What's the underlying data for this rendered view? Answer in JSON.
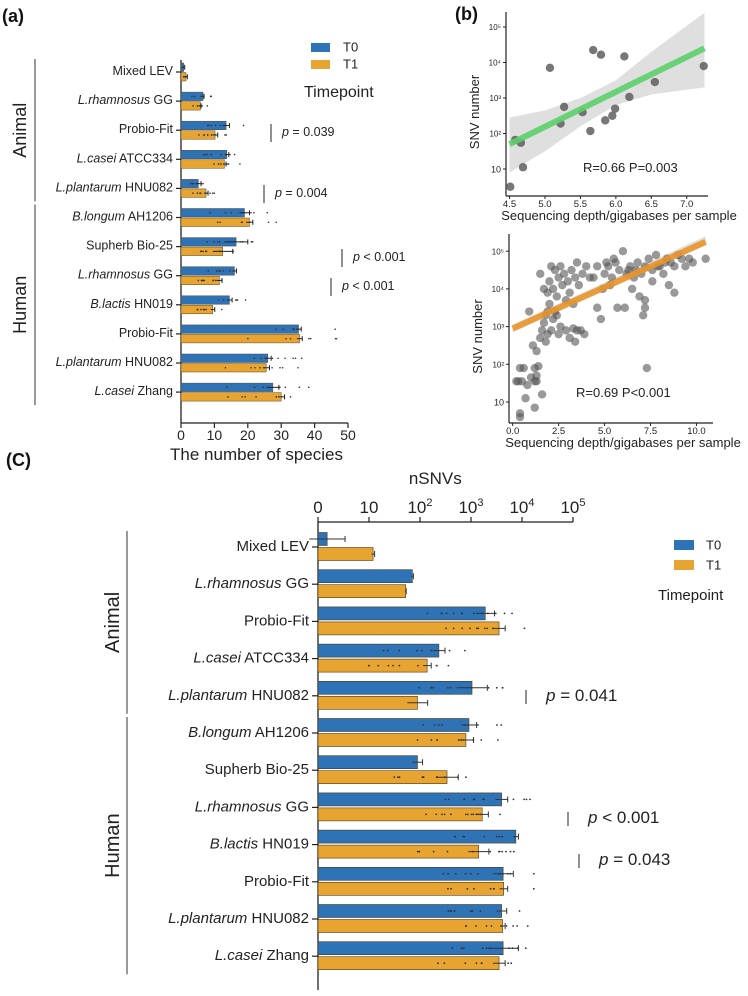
{
  "panels": {
    "a_label": "(a)",
    "b_label": "(b)",
    "c_label": "(C)"
  },
  "colors": {
    "T0": "#2f73b7",
    "T1": "#e8a431",
    "scatter_point": "#555555",
    "fit_top": "#5ccf6a",
    "fit_bottom": "#e9952a",
    "ci_band": "#d9d9d9"
  },
  "chart_data": [
    {
      "id": "a",
      "type": "bar",
      "orientation": "horizontal",
      "title": "",
      "xlabel": "The number of species",
      "ylabel": "",
      "xlim": [
        0,
        50
      ],
      "xticks": [
        "0",
        "10",
        "20",
        "30",
        "40",
        "50"
      ],
      "grid": false,
      "legend": {
        "title": "Timepoint",
        "entries": [
          "T0",
          "T1"
        ],
        "placement": "top-right"
      },
      "groups": [
        {
          "name": "Animal",
          "categories": [
            0,
            1,
            2,
            3,
            4
          ]
        },
        {
          "name": "Human",
          "categories": [
            5,
            6,
            7,
            8,
            9,
            10,
            11
          ]
        }
      ],
      "categories": [
        {
          "italic": "",
          "plain": "Mixed LEV"
        },
        {
          "italic": "L.rhamnosus",
          "plain": " GG"
        },
        {
          "italic": "",
          "plain": "Probio-Fit"
        },
        {
          "italic": "L.casei",
          "plain": " ATCC334"
        },
        {
          "italic": "L.plantarum",
          "plain": " HNU082"
        },
        {
          "italic": "B.longum",
          "plain": " AH1206"
        },
        {
          "italic": "",
          "plain": "Supherb Bio-25"
        },
        {
          "italic": "L.rhamnosus",
          "plain": " GG"
        },
        {
          "italic": "B.lactis",
          "plain": " HN019"
        },
        {
          "italic": "",
          "plain": "Probio-Fit"
        },
        {
          "italic": "L.plantarum",
          "plain": " HNU082"
        },
        {
          "italic": "L.casei",
          "plain": " Zhang"
        }
      ],
      "series": [
        {
          "name": "T0",
          "values": [
            0.8,
            6.6,
            13.5,
            13.7,
            5.2,
            19.0,
            16.5,
            16.0,
            14.5,
            35.2,
            26.0,
            27.5
          ],
          "errors": [
            0.3,
            0.3,
            1.0,
            0.6,
            0.8,
            1.5,
            3.5,
            0.6,
            0.8,
            0.8,
            1.0,
            1.8
          ]
        },
        {
          "name": "T1",
          "values": [
            1.5,
            5.8,
            10.2,
            13.0,
            7.5,
            20.5,
            12.5,
            11.5,
            9.5,
            35.5,
            25.5,
            30.0
          ],
          "errors": [
            0.4,
            0.2,
            0.8,
            0.5,
            0.6,
            1.0,
            3.0,
            0.8,
            0.6,
            0.8,
            1.0,
            1.0
          ]
        }
      ],
      "annotations": [
        {
          "text_italic": "p",
          "text": " = 0.039",
          "category": 2
        },
        {
          "text_italic": "p",
          "text": " = 0.004",
          "category": 4
        },
        {
          "text_italic": "p",
          "text": " < 0.001",
          "category": 7
        },
        {
          "text_italic": "p",
          "text": " < 0.001",
          "category": 8
        }
      ]
    },
    {
      "id": "b_top",
      "type": "scatter",
      "title": "",
      "xlabel": "Sequencing depth/gigabases per sample",
      "ylabel": "SNV number",
      "xlim": [
        4.45,
        7.3
      ],
      "ylim_log10": [
        0.45,
        5.4
      ],
      "xticks": [
        "4.5",
        "5.0",
        "5.5",
        "6.0",
        "6.5",
        "7.0"
      ],
      "yticks": [
        "10",
        "10²",
        "10³",
        "10⁴",
        "10⁵"
      ],
      "grid": false,
      "annotation": "R=0.66 P=0.003",
      "fit": {
        "x": [
          4.5,
          7.25
        ],
        "log10y": [
          1.7,
          4.4
        ]
      },
      "ci": {
        "x": [
          4.5,
          5.0,
          5.5,
          6.0,
          6.5,
          7.25
        ],
        "lower_log10": [
          0.9,
          1.5,
          2.2,
          2.8,
          3.1,
          3.3
        ],
        "upper_log10": [
          2.45,
          2.65,
          3.0,
          3.5,
          4.3,
          5.4
        ]
      },
      "points": [
        [
          4.51,
          0.5
        ],
        [
          4.58,
          1.82
        ],
        [
          4.66,
          1.74
        ],
        [
          4.69,
          1.05
        ],
        [
          5.07,
          3.85
        ],
        [
          5.22,
          2.28
        ],
        [
          5.27,
          2.75
        ],
        [
          5.53,
          2.6
        ],
        [
          5.64,
          2.07
        ],
        [
          5.68,
          4.35
        ],
        [
          5.79,
          4.22
        ],
        [
          5.85,
          2.37
        ],
        [
          5.95,
          2.5
        ],
        [
          5.99,
          2.7
        ],
        [
          6.12,
          4.17
        ],
        [
          6.19,
          3.03
        ],
        [
          6.55,
          3.45
        ],
        [
          7.24,
          3.9
        ]
      ]
    },
    {
      "id": "b_bottom",
      "type": "scatter",
      "title": "",
      "xlabel": "Sequencing depth/gigabases per sample",
      "ylabel": "SNV number",
      "xlim": [
        -0.2,
        10.9
      ],
      "ylim_log10": [
        0.45,
        5.4
      ],
      "xticks": [
        "0.0",
        "2.5",
        "5.0",
        "7.5",
        "10.0"
      ],
      "yticks": [
        "10",
        "10²",
        "10³",
        "10⁴",
        "10⁵"
      ],
      "grid": false,
      "annotation": "R=0.69 P<0.001",
      "fit": {
        "x": [
          0.0,
          10.5
        ],
        "log10y": [
          2.95,
          5.25
        ]
      },
      "ci_halfwidth_log10": 0.1,
      "points": [
        [
          0.3,
          1.55
        ],
        [
          0.4,
          1.9
        ],
        [
          0.2,
          1.55
        ],
        [
          0.6,
          1.9
        ],
        [
          0.5,
          1.55
        ],
        [
          0.8,
          1.45
        ],
        [
          0.7,
          1.1
        ],
        [
          1.0,
          1.65
        ],
        [
          1.2,
          1.9
        ],
        [
          1.3,
          1.7
        ],
        [
          1.2,
          1.55
        ],
        [
          1.4,
          1.95
        ],
        [
          1.3,
          1.55
        ],
        [
          1.6,
          1.2
        ],
        [
          1.2,
          0.85
        ],
        [
          0.4,
          0.6
        ],
        [
          0.4,
          0.7
        ],
        [
          0.9,
          3.4
        ],
        [
          1.1,
          2.5
        ],
        [
          1.3,
          2.35
        ],
        [
          1.5,
          2.7
        ],
        [
          1.6,
          2.9
        ],
        [
          1.8,
          2.6
        ],
        [
          1.9,
          2.8
        ],
        [
          2.1,
          2.9
        ],
        [
          1.7,
          3.1
        ],
        [
          1.9,
          3.4
        ],
        [
          2.2,
          3.2
        ],
        [
          2.4,
          3.3
        ],
        [
          2.6,
          3.0
        ],
        [
          2.9,
          2.9
        ],
        [
          3.1,
          2.7
        ],
        [
          3.3,
          2.95
        ],
        [
          3.5,
          2.9
        ],
        [
          3.4,
          2.6
        ],
        [
          3.7,
          2.9
        ],
        [
          3.9,
          2.8
        ],
        [
          2.5,
          2.8
        ],
        [
          1.5,
          4.4
        ],
        [
          1.7,
          4.0
        ],
        [
          1.9,
          3.9
        ],
        [
          2.1,
          4.6
        ],
        [
          2.3,
          4.5
        ],
        [
          2.5,
          4.3
        ],
        [
          2.7,
          4.1
        ],
        [
          2.4,
          3.8
        ],
        [
          2.8,
          4.4
        ],
        [
          3.0,
          4.2
        ],
        [
          3.2,
          4.5
        ],
        [
          3.4,
          4.3
        ],
        [
          3.6,
          4.1
        ],
        [
          3.8,
          4.4
        ],
        [
          4.0,
          4.6
        ],
        [
          4.2,
          4.3
        ],
        [
          2.0,
          4.2
        ],
        [
          2.2,
          4.0
        ],
        [
          2.6,
          4.6
        ],
        [
          3.1,
          3.9
        ],
        [
          3.3,
          3.6
        ],
        [
          3.5,
          4.7
        ],
        [
          2.9,
          3.7
        ],
        [
          2.3,
          3.4
        ],
        [
          2.0,
          3.6
        ],
        [
          1.8,
          3.3
        ],
        [
          4.4,
          4.3
        ],
        [
          4.6,
          3.5
        ],
        [
          4.8,
          3.2
        ],
        [
          5.0,
          4.4
        ],
        [
          5.2,
          4.6
        ],
        [
          5.4,
          4.3
        ],
        [
          5.6,
          4.7
        ],
        [
          5.8,
          4.5
        ],
        [
          6.0,
          5.0
        ],
        [
          6.2,
          4.4
        ],
        [
          6.4,
          4.6
        ],
        [
          6.6,
          4.3
        ],
        [
          6.8,
          4.7
        ],
        [
          7.0,
          4.4
        ],
        [
          7.2,
          4.6
        ],
        [
          7.4,
          4.8
        ],
        [
          7.6,
          4.5
        ],
        [
          7.8,
          4.9
        ],
        [
          8.0,
          4.6
        ],
        [
          8.2,
          4.4
        ],
        [
          8.4,
          4.8
        ],
        [
          8.6,
          4.7
        ],
        [
          8.8,
          4.6
        ],
        [
          9.0,
          4.9
        ],
        [
          9.2,
          4.8
        ],
        [
          9.4,
          4.6
        ],
        [
          9.6,
          4.8
        ],
        [
          9.8,
          4.7
        ],
        [
          10.5,
          4.8
        ],
        [
          4.6,
          4.6
        ],
        [
          4.9,
          4.0
        ],
        [
          5.3,
          4.1
        ],
        [
          5.7,
          3.5
        ],
        [
          6.1,
          3.5
        ],
        [
          6.5,
          4.0
        ],
        [
          6.9,
          3.8
        ],
        [
          7.1,
          3.3
        ],
        [
          7.2,
          3.5
        ],
        [
          7.2,
          3.7
        ],
        [
          7.6,
          4.2
        ],
        [
          8.5,
          4.1
        ],
        [
          8.8,
          3.9
        ],
        [
          7.3,
          1.9
        ],
        [
          5.1,
          4.7
        ],
        [
          5.5,
          4.8
        ],
        [
          6.3,
          4.5
        ],
        [
          6.7,
          4.5
        ],
        [
          7.9,
          4.6
        ],
        [
          8.3,
          4.7
        ]
      ]
    },
    {
      "id": "c",
      "type": "bar",
      "orientation": "horizontal",
      "title": "nSNVs",
      "xlabel": "",
      "ylabel": "",
      "xscale": "log",
      "xticks": [
        "0",
        "10",
        "10²",
        "10³",
        "10⁴",
        "10⁵"
      ],
      "xtick_log10": [
        0,
        1,
        2,
        3,
        4,
        5
      ],
      "grid": false,
      "legend": {
        "title": "Timepoint",
        "entries": [
          "T0",
          "T1"
        ],
        "placement": "right"
      },
      "groups": [
        {
          "name": "Animal",
          "categories": [
            0,
            1,
            2,
            3,
            4
          ]
        },
        {
          "name": "Human",
          "categories": [
            5,
            6,
            7,
            8,
            9,
            10,
            11
          ]
        }
      ],
      "categories": [
        {
          "italic": "",
          "plain": "Mixed LEV"
        },
        {
          "italic": "L.rhamnosus",
          "plain": " GG"
        },
        {
          "italic": "",
          "plain": "Probio-Fit"
        },
        {
          "italic": "L.casei",
          "plain": " ATCC334"
        },
        {
          "italic": "L.plantarum",
          "plain": " HNU082"
        },
        {
          "italic": "B.longum",
          "plain": " AH1206"
        },
        {
          "italic": "",
          "plain": "Supherb Bio-25"
        },
        {
          "italic": "L.rhamnosus",
          "plain": " GG"
        },
        {
          "italic": "B.lactis",
          "plain": " HN019"
        },
        {
          "italic": "",
          "plain": "Probio-Fit"
        },
        {
          "italic": "L.plantarum",
          "plain": " HNU082"
        },
        {
          "italic": "L.casei",
          "plain": " Zhang"
        }
      ],
      "series": [
        {
          "name": "T0",
          "log10_values": [
            0.18,
            1.85,
            3.28,
            2.37,
            3.02,
            2.96,
            1.95,
            3.6,
            3.88,
            3.63,
            3.6,
            3.63
          ],
          "log10_err": [
            0.35,
            0.02,
            0.18,
            0.12,
            0.3,
            0.15,
            0.1,
            0.12,
            0.05,
            0.2,
            0.1,
            0.3
          ]
        },
        {
          "name": "T1",
          "log10_values": [
            1.08,
            1.72,
            3.55,
            2.14,
            1.95,
            2.9,
            2.53,
            3.22,
            3.15,
            3.64,
            3.62,
            3.55
          ],
          "log10_err": [
            0.03,
            0.01,
            0.12,
            0.08,
            0.2,
            0.15,
            0.22,
            0.12,
            0.2,
            0.08,
            0.05,
            0.12
          ]
        }
      ],
      "annotations": [
        {
          "text_italic": "p",
          "text": " = 0.041",
          "category": 4
        },
        {
          "text_italic": "p",
          "text": " < 0.001",
          "category": 7
        },
        {
          "text_italic": "p",
          "text": " = 0.043",
          "category": 8
        }
      ]
    }
  ]
}
